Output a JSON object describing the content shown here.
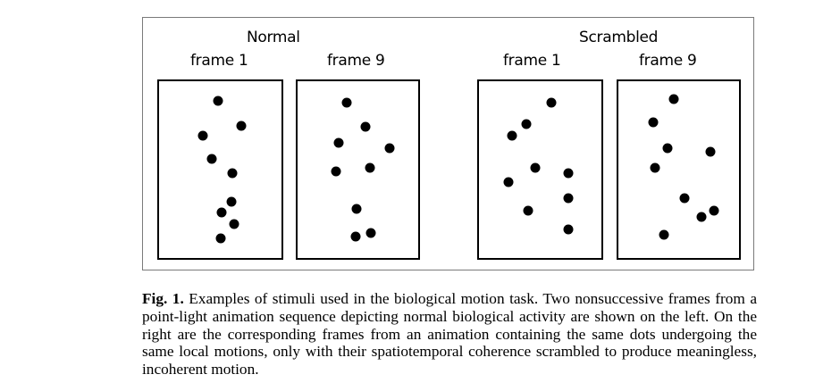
{
  "figure": {
    "groups": [
      {
        "title": "Normal",
        "frames": [
          {
            "label": "frame 1",
            "dots": [
              [
                0.48,
                0.11
              ],
              [
                0.67,
                0.25
              ],
              [
                0.36,
                0.31
              ],
              [
                0.43,
                0.44
              ],
              [
                0.6,
                0.52
              ],
              [
                0.59,
                0.68
              ],
              [
                0.51,
                0.74
              ],
              [
                0.61,
                0.81
              ],
              [
                0.5,
                0.89
              ]
            ]
          },
          {
            "label": "frame 9",
            "dots": [
              [
                0.41,
                0.12
              ],
              [
                0.56,
                0.26
              ],
              [
                0.34,
                0.35
              ],
              [
                0.76,
                0.38
              ],
              [
                0.32,
                0.51
              ],
              [
                0.6,
                0.49
              ],
              [
                0.49,
                0.72
              ],
              [
                0.48,
                0.88
              ],
              [
                0.61,
                0.86
              ]
            ]
          }
        ]
      },
      {
        "title": "Scrambled",
        "frames": [
          {
            "label": "frame 1",
            "dots": [
              [
                0.59,
                0.12
              ],
              [
                0.39,
                0.24
              ],
              [
                0.27,
                0.31
              ],
              [
                0.46,
                0.49
              ],
              [
                0.73,
                0.52
              ],
              [
                0.24,
                0.57
              ],
              [
                0.73,
                0.66
              ],
              [
                0.4,
                0.73
              ],
              [
                0.73,
                0.84
              ]
            ]
          },
          {
            "label": "frame 9",
            "dots": [
              [
                0.46,
                0.1
              ],
              [
                0.29,
                0.23
              ],
              [
                0.41,
                0.38
              ],
              [
                0.76,
                0.4
              ],
              [
                0.3,
                0.49
              ],
              [
                0.55,
                0.66
              ],
              [
                0.79,
                0.73
              ],
              [
                0.69,
                0.77
              ],
              [
                0.38,
                0.87
              ]
            ]
          }
        ]
      }
    ]
  },
  "caption": {
    "label": "Fig. 1.",
    "text": "Examples of stimuli used in the biological motion task. Two nonsuccessive frames from a point-light animation sequence depicting normal biological activity are shown on the left. On the right are the corresponding frames from an animation containing the same dots undergoing the same local motions, only with their spatiotemporal coherence scrambled to produce meaningless, incoherent motion."
  }
}
